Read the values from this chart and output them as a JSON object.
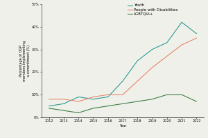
{
  "years": [
    2012,
    2013,
    2014,
    2015,
    2016,
    2017,
    2018,
    2019,
    2020,
    2021,
    2022
  ],
  "youth": [
    0.05,
    0.06,
    0.09,
    0.08,
    0.09,
    0.16,
    0.25,
    0.3,
    0.33,
    0.42,
    0.37
  ],
  "disabilities": [
    0.08,
    0.08,
    0.07,
    0.09,
    0.1,
    0.1,
    0.16,
    0.22,
    0.27,
    0.32,
    0.35
  ],
  "lgbtqia": [
    0.04,
    0.03,
    0.02,
    0.04,
    0.05,
    0.06,
    0.07,
    0.08,
    0.1,
    0.1,
    0.07
  ],
  "youth_color": "#2a9d8f",
  "disabilities_color": "#e8856a",
  "lgbtqia_color": "#3a7d44",
  "youth_label": "Youth",
  "disabilities_label": "People with Disabilities",
  "lgbtqia_label": "LGBTQIA+",
  "xlabel": "Year",
  "ylabel": "Percentage of OGP\nmembers implementing\na commitment (%)",
  "ylim": [
    0,
    0.5
  ],
  "yticks": [
    0,
    0.1,
    0.2,
    0.3,
    0.4,
    0.5
  ],
  "background_color": "#f0f0eb",
  "legend_fontsize": 4,
  "axis_label_fontsize": 3.5,
  "tick_fontsize": 3.5,
  "linewidth": 0.8
}
